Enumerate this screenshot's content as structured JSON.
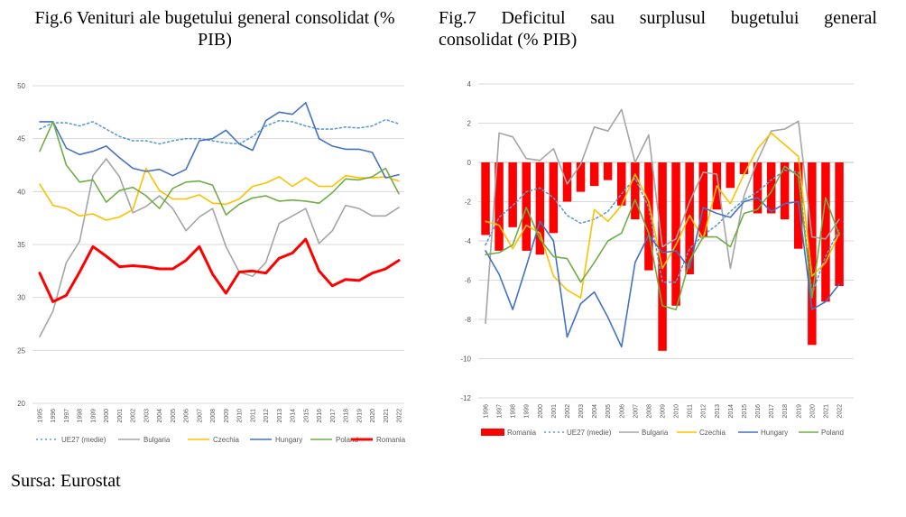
{
  "fig6": {
    "title": "Fig.6 Venituri ale bugetului general consolidat (% PIB)",
    "chart_data": {
      "type": "line",
      "x": [
        "1995",
        "1996",
        "1997",
        "1998",
        "1999",
        "2000",
        "2001",
        "2002",
        "2003",
        "2004",
        "2005",
        "2006",
        "2007",
        "2008",
        "2009",
        "2010",
        "2011",
        "2012",
        "2013",
        "2014",
        "2015",
        "2016",
        "2017",
        "2018",
        "2019",
        "2020",
        "2021",
        "2022"
      ],
      "ylim": [
        20,
        50
      ],
      "yticks": [
        20,
        25,
        30,
        35,
        40,
        45,
        50
      ],
      "grid": true,
      "legend": "bottom",
      "series": [
        {
          "name": "UE27 (medie)",
          "color": "#5b9bd5",
          "dashed": true,
          "width": 1.6,
          "values": [
            45.9,
            46.5,
            46.5,
            46.2,
            46.6,
            45.9,
            45.2,
            44.8,
            44.8,
            44.5,
            44.8,
            45.0,
            45.0,
            44.8,
            44.6,
            44.5,
            45.2,
            46.2,
            46.7,
            46.6,
            46.2,
            45.9,
            45.9,
            46.1,
            46.0,
            46.2,
            46.8,
            46.4
          ]
        },
        {
          "name": "Bulgaria",
          "color": "#a5a5a5",
          "width": 1.6,
          "values": [
            26.3,
            28.7,
            33.3,
            35.3,
            41.5,
            43.1,
            41.4,
            38.0,
            38.6,
            39.6,
            38.4,
            36.3,
            37.6,
            38.4,
            34.8,
            32.4,
            32.0,
            33.3,
            37.0,
            37.7,
            38.4,
            35.1,
            36.3,
            38.7,
            38.4,
            37.7,
            37.7,
            38.5
          ]
        },
        {
          "name": "Czechia",
          "color": "#ffc000",
          "width": 1.6,
          "values": [
            40.7,
            38.7,
            38.4,
            37.7,
            37.9,
            37.3,
            37.6,
            38.3,
            42.2,
            40.1,
            39.3,
            39.3,
            39.7,
            38.9,
            38.8,
            39.3,
            40.5,
            40.8,
            41.4,
            40.5,
            41.3,
            40.5,
            40.5,
            41.5,
            41.3,
            41.3,
            41.4,
            41.0
          ]
        },
        {
          "name": "Hungary",
          "color": "#4472c4",
          "width": 1.6,
          "values": [
            46.6,
            46.6,
            44.1,
            43.5,
            43.8,
            44.3,
            43.2,
            42.2,
            41.9,
            42.1,
            41.5,
            42.1,
            44.8,
            45.0,
            45.8,
            44.5,
            43.9,
            46.7,
            47.5,
            47.3,
            48.4,
            45.0,
            44.3,
            44.0,
            44.0,
            43.7,
            41.3,
            41.6
          ]
        },
        {
          "name": "Poland",
          "color": "#70ad47",
          "width": 1.6,
          "values": [
            43.8,
            46.6,
            42.5,
            40.9,
            41.1,
            39.0,
            40.1,
            40.4,
            39.6,
            38.4,
            40.3,
            40.9,
            41.0,
            40.6,
            37.8,
            38.8,
            39.4,
            39.6,
            39.1,
            39.2,
            39.1,
            38.9,
            39.9,
            41.2,
            41.1,
            41.4,
            42.2,
            39.8
          ]
        },
        {
          "name": "Romania",
          "color": "#ff0000",
          "width": 3,
          "values": [
            32.3,
            29.6,
            30.2,
            32.4,
            34.8,
            33.9,
            32.9,
            33.0,
            32.9,
            32.7,
            32.7,
            33.5,
            34.8,
            32.2,
            30.4,
            32.4,
            32.5,
            32.3,
            33.7,
            34.2,
            35.5,
            32.5,
            31.1,
            31.7,
            31.6,
            32.3,
            32.7,
            33.5
          ]
        }
      ]
    }
  },
  "fig7": {
    "title": "Fig.7 Deficitul sau surplusul bugetului general consolidat (% PIB)",
    "title_line1": "Fig.7 Deficitul sau surplusul bugetului general",
    "title_line2": "consolidat (% PIB)",
    "chart_data": {
      "type": "bar+line",
      "x": [
        "1996",
        "1997",
        "1998",
        "1999",
        "2000",
        "2001",
        "2002",
        "2003",
        "2004",
        "2005",
        "2006",
        "2007",
        "2008",
        "2009",
        "2010",
        "2011",
        "2012",
        "2013",
        "2014",
        "2015",
        "2016",
        "2017",
        "2018",
        "2019",
        "2020",
        "2021",
        "2022"
      ],
      "ylim": [
        -12,
        4
      ],
      "yticks": [
        -12,
        -10,
        -8,
        -6,
        -4,
        -2,
        0,
        2,
        4
      ],
      "grid": true,
      "legend": "bottom",
      "bars": {
        "name": "Romania",
        "color": "#ff0000",
        "values": [
          -3.7,
          -4.5,
          -3.3,
          -4.5,
          -4.7,
          -3.6,
          -2.0,
          -1.5,
          -1.2,
          -0.9,
          -2.2,
          -2.9,
          -5.5,
          -9.6,
          -7.3,
          -5.7,
          -3.8,
          -2.4,
          -1.3,
          -0.6,
          -2.6,
          -2.6,
          -2.9,
          -4.4,
          -9.3,
          -7.1,
          -6.3
        ]
      },
      "series": [
        {
          "name": "UE27 (medie)",
          "color": "#5b9bd5",
          "dashed": true,
          "values": [
            -4.2,
            -2.8,
            -2.2,
            -1.5,
            -1.3,
            -1.8,
            -2.7,
            -3.1,
            -2.9,
            -2.5,
            -1.6,
            -0.8,
            -2.3,
            -6.1,
            -6.1,
            -4.4,
            -3.7,
            -3.2,
            -2.5,
            -1.9,
            -1.5,
            -0.9,
            -0.4,
            -0.5,
            -6.7,
            -4.8,
            -3.4
          ]
        },
        {
          "name": "Bulgaria",
          "color": "#a5a5a5",
          "values": [
            -8.2,
            1.5,
            1.3,
            0.2,
            0.1,
            0.7,
            -1.1,
            -0.1,
            1.8,
            1.6,
            2.7,
            0.0,
            1.4,
            -4.3,
            -3.9,
            -2.0,
            -0.5,
            -0.6,
            -5.4,
            -1.7,
            0.1,
            1.6,
            1.7,
            2.1,
            -3.8,
            -3.9,
            -2.9
          ]
        },
        {
          "name": "Czechia",
          "color": "#ffc000",
          "values": [
            -3.0,
            -3.2,
            -4.4,
            -3.2,
            -3.6,
            -5.8,
            -6.5,
            -6.9,
            -2.4,
            -3.0,
            -2.2,
            -0.6,
            -2.0,
            -5.4,
            -4.2,
            -2.7,
            -3.9,
            -1.2,
            -2.1,
            -0.6,
            0.7,
            1.5,
            0.9,
            0.3,
            -5.8,
            -5.1,
            -3.6
          ]
        },
        {
          "name": "Hungary",
          "color": "#4472c4",
          "values": [
            -4.5,
            -5.7,
            -7.5,
            -5.3,
            -3.0,
            -4.0,
            -8.9,
            -7.2,
            -6.6,
            -7.9,
            -9.4,
            -5.1,
            -3.7,
            -4.6,
            -4.5,
            -5.4,
            -2.3,
            -2.6,
            -2.8,
            -2.0,
            -1.8,
            -2.5,
            -2.1,
            -2.0,
            -7.5,
            -7.1,
            -6.2
          ]
        },
        {
          "name": "Poland",
          "color": "#70ad47",
          "values": [
            -4.7,
            -4.6,
            -4.2,
            -2.3,
            -3.9,
            -4.8,
            -4.9,
            -6.1,
            -5.1,
            -4.0,
            -3.6,
            -1.9,
            -3.6,
            -7.3,
            -7.5,
            -5.0,
            -3.8,
            -3.8,
            -4.3,
            -2.6,
            -2.4,
            -1.5,
            -0.2,
            -0.7,
            -6.9,
            -1.8,
            -3.7
          ]
        }
      ]
    }
  },
  "source": "Sursa: Eurostat"
}
